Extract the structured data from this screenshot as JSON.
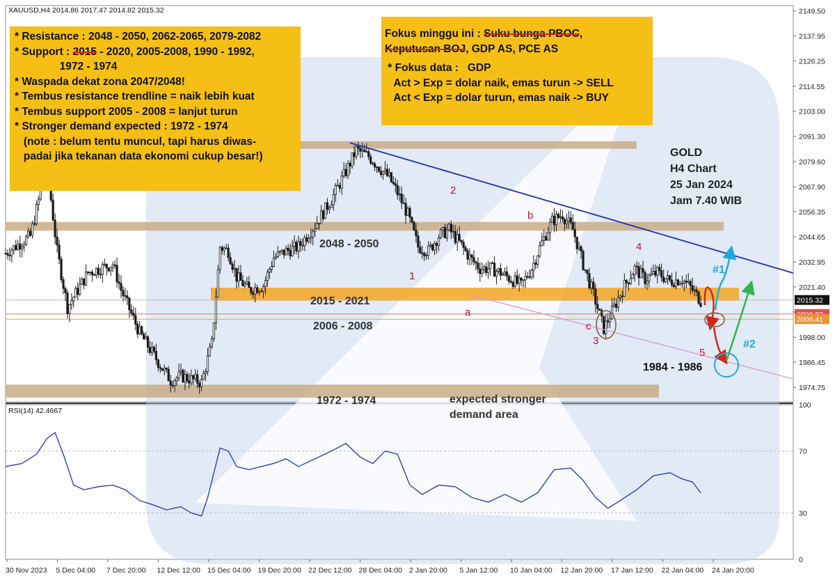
{
  "chart_data": [
    {
      "type": "candlestick",
      "header": "XAUUSD,H4  2014.86 2017.47 2014.82 2015.32",
      "symbol": "XAUUSD",
      "timeframe": "H4",
      "ohlc_header": {
        "open": 2014.86,
        "high": 2017.47,
        "low": 2014.82,
        "close": 2015.32
      },
      "ylim": [
        1968,
        2152
      ],
      "y_ticks": [
        "2149.50",
        "2137.95",
        "2126.25",
        "2114.55",
        "2103.00",
        "2091.30",
        "2079.60",
        "2067.90",
        "2056.35",
        "2044.65",
        "2032.95",
        "2021.40",
        "2009.70",
        "1998.00",
        "1986.45",
        "1974.75"
      ],
      "price_tags": {
        "current": "2015.32",
        "level_a": "2008.82",
        "level_b": "2006.41"
      },
      "x_ticks": [
        "30 Nov 2023",
        "5 Dec 04:00",
        "7 Dec 20:00",
        "12 Dec 12:00",
        "15 Dec 04:00",
        "19 Dec 20:00",
        "22 Dec 12:00",
        "28 Dec 04:00",
        "2 Jan 20:00",
        "5 Jan 12:00",
        "10 Jan 04:00",
        "12 Jan 20:00",
        "17 Jan 12:00",
        "22 Jan 04:00",
        "24 Jan 20:00"
      ],
      "approx_close_path": [
        [
          0,
          2037
        ],
        [
          12,
          2045
        ],
        [
          20,
          2078
        ],
        [
          25,
          2038
        ],
        [
          30,
          2012
        ],
        [
          40,
          2028
        ],
        [
          52,
          2032
        ],
        [
          56,
          2020
        ],
        [
          65,
          2000
        ],
        [
          75,
          1985
        ],
        [
          80,
          1978
        ],
        [
          85,
          1980
        ],
        [
          95,
          1977
        ],
        [
          100,
          1995
        ],
        [
          104,
          2040
        ],
        [
          108,
          2038
        ],
        [
          112,
          2026
        ],
        [
          118,
          2020
        ],
        [
          125,
          2022
        ],
        [
          130,
          2035
        ],
        [
          136,
          2038
        ],
        [
          142,
          2040
        ],
        [
          150,
          2050
        ],
        [
          158,
          2062
        ],
        [
          165,
          2075
        ],
        [
          170,
          2085
        ],
        [
          176,
          2082
        ],
        [
          180,
          2078
        ],
        [
          186,
          2072
        ],
        [
          190,
          2065
        ],
        [
          195,
          2055
        ],
        [
          200,
          2040
        ],
        [
          205,
          2038
        ],
        [
          210,
          2045
        ],
        [
          215,
          2048
        ],
        [
          220,
          2042
        ],
        [
          225,
          2035
        ],
        [
          230,
          2030
        ],
        [
          235,
          2030
        ],
        [
          240,
          2028
        ],
        [
          245,
          2025
        ],
        [
          250,
          2022
        ],
        [
          255,
          2030
        ],
        [
          260,
          2042
        ],
        [
          265,
          2052
        ],
        [
          270,
          2055
        ],
        [
          275,
          2048
        ],
        [
          280,
          2032
        ],
        [
          285,
          2018
        ],
        [
          290,
          2002
        ],
        [
          295,
          2012
        ],
        [
          300,
          2022
        ],
        [
          305,
          2030
        ],
        [
          310,
          2025
        ],
        [
          316,
          2028
        ],
        [
          322,
          2024
        ],
        [
          328,
          2025
        ],
        [
          333,
          2020
        ],
        [
          337,
          2015
        ]
      ],
      "zones": [
        {
          "label": "2048 - 2050"
        },
        {
          "label": "2015 - 2021"
        },
        {
          "label": "2006 - 2008"
        },
        {
          "label": "1972 - 1974"
        },
        {
          "label": "1984 - 1986"
        }
      ],
      "wave_labels": [
        "1",
        "2",
        "3",
        "4",
        "5",
        "a",
        "b",
        "c"
      ],
      "scenario_labels": [
        "#1",
        "#2"
      ],
      "chart_title_lines": [
        "GOLD",
        "H4 Chart",
        "25 Jan 2024",
        "Jam 7.40 WIB"
      ],
      "annotation_demand": [
        "expected stronger",
        "demand area"
      ]
    },
    {
      "type": "line",
      "header": "RSI(14) 42.4667",
      "name": "RSI(14)",
      "last_value": 42.4667,
      "ylim": [
        0,
        100
      ],
      "y_ticks": [
        "100",
        "70",
        "30",
        "0"
      ],
      "approx_path": [
        [
          0,
          60
        ],
        [
          8,
          62
        ],
        [
          15,
          68
        ],
        [
          20,
          78
        ],
        [
          24,
          82
        ],
        [
          28,
          68
        ],
        [
          33,
          48
        ],
        [
          38,
          45
        ],
        [
          45,
          47
        ],
        [
          52,
          48
        ],
        [
          58,
          45
        ],
        [
          65,
          38
        ],
        [
          72,
          35
        ],
        [
          78,
          32
        ],
        [
          85,
          34
        ],
        [
          90,
          30
        ],
        [
          95,
          28
        ],
        [
          98,
          40
        ],
        [
          104,
          72
        ],
        [
          108,
          70
        ],
        [
          112,
          60
        ],
        [
          118,
          58
        ],
        [
          124,
          60
        ],
        [
          130,
          62
        ],
        [
          136,
          65
        ],
        [
          142,
          60
        ],
        [
          150,
          65
        ],
        [
          158,
          70
        ],
        [
          165,
          75
        ],
        [
          172,
          66
        ],
        [
          178,
          62
        ],
        [
          184,
          70
        ],
        [
          190,
          68
        ],
        [
          196,
          48
        ],
        [
          202,
          42
        ],
        [
          210,
          48
        ],
        [
          218,
          47
        ],
        [
          226,
          40
        ],
        [
          234,
          37
        ],
        [
          242,
          42
        ],
        [
          250,
          37
        ],
        [
          258,
          43
        ],
        [
          266,
          58
        ],
        [
          274,
          59
        ],
        [
          280,
          51
        ],
        [
          286,
          40
        ],
        [
          292,
          33
        ],
        [
          298,
          38
        ],
        [
          306,
          45
        ],
        [
          314,
          54
        ],
        [
          322,
          56
        ],
        [
          328,
          52
        ],
        [
          333,
          50
        ],
        [
          337,
          43
        ]
      ]
    }
  ],
  "notes": {
    "left": {
      "lines": [
        "* Resistance : 2048 - 2050, 2062-2065, 2079-2082",
        "* Support : ",
        "2015",
        " - 2020, 2005-2008, 1990 - 1992,",
        "               1972 - 1974",
        "* Waspada dekat zona 2047/2048!",
        "* Tembus resistance trendline = naik lebih kuat",
        "* Tembus support 2005 - 2008 = lanjut turun",
        "* Stronger demand expected : 1972 - 1974",
        "   (note : belum tentu muncul, tapi harus diwas-",
        "   padai jika tekanan data ekonomi cukup besar!)"
      ]
    },
    "right": {
      "prefix": "Fokus minggu ini : ",
      "struck1": "Suku bunga PBOC",
      "comma": ",",
      "struck2": "Keputusan BOJ",
      "rest": ", GDP AS, PCE AS",
      "data_line": " * Fokus data :   GDP",
      "act_gt": "   Act > Exp = dolar naik, emas turun -> SELL",
      "act_lt": "   Act < Exp = dolar turun, emas naik -> BUY"
    }
  },
  "colors": {
    "candle": "#1a1a1a",
    "zone_brown": "#c9ab86",
    "zone_orange": "#f5a623",
    "trendline": "#1f2fb4",
    "lower_line": "#d99bd1",
    "rsi_line": "#2233bb",
    "note_bg": "#f5bf16",
    "wave_red": "#c8102e",
    "arrow_cyan": "#22a7e0",
    "arrow_green": "#2fb34a",
    "arrow_red": "#d0281f",
    "watermark": "#bcd0e8"
  }
}
